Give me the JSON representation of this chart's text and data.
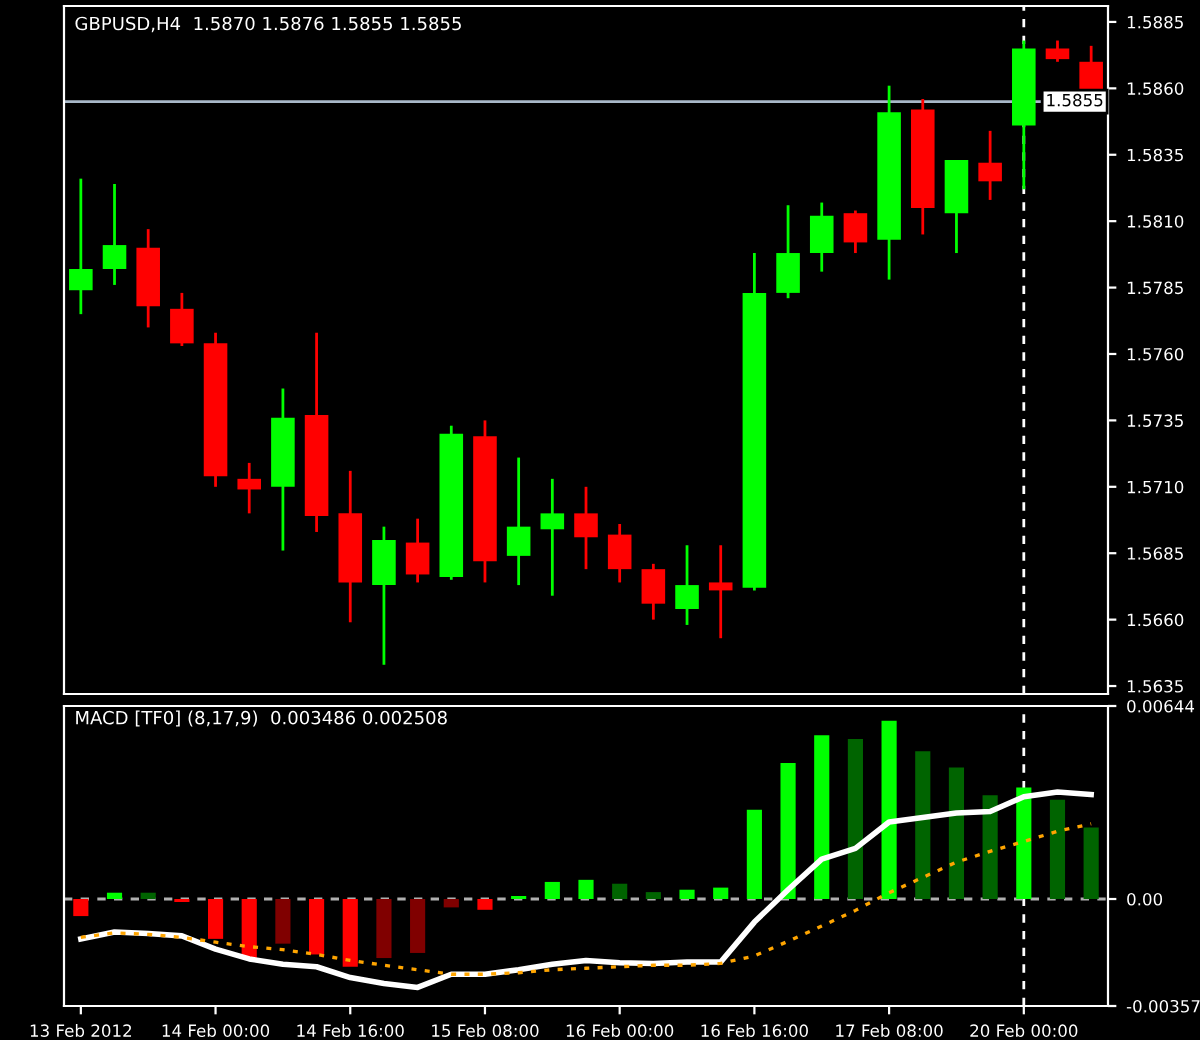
{
  "chart_data": [
    {
      "type": "candlestick",
      "title": "GBPUSD,H4  1.5870 1.5876 1.5855 1.5855",
      "categories": [
        "13 Feb 2012",
        null,
        null,
        null,
        "14 Feb 00:00",
        null,
        null,
        null,
        "14 Feb 16:00",
        null,
        null,
        null,
        "15 Feb 08:00",
        null,
        null,
        null,
        "16 Feb 00:00",
        null,
        null,
        null,
        "16 Feb 16:00",
        null,
        null,
        null,
        "17 Feb 08:00",
        null,
        null,
        null,
        "20 Feb 00:00",
        null,
        null
      ],
      "ohlc": [
        [
          1.5784,
          1.5826,
          1.5775,
          1.5792
        ],
        [
          1.5792,
          1.5824,
          1.5786,
          1.5801
        ],
        [
          1.58,
          1.5807,
          1.577,
          1.5778
        ],
        [
          1.5777,
          1.5783,
          1.5763,
          1.5764
        ],
        [
          1.5764,
          1.5768,
          1.571,
          1.5714
        ],
        [
          1.5713,
          1.5719,
          1.57,
          1.5709
        ],
        [
          1.571,
          1.5747,
          1.5686,
          1.5736
        ],
        [
          1.5737,
          1.5768,
          1.5693,
          1.5699
        ],
        [
          1.57,
          1.5716,
          1.5659,
          1.5674
        ],
        [
          1.5673,
          1.5695,
          1.5643,
          1.569
        ],
        [
          1.5689,
          1.5698,
          1.5674,
          1.5677
        ],
        [
          1.5676,
          1.5733,
          1.5675,
          1.573
        ],
        [
          1.5729,
          1.5735,
          1.5674,
          1.5682
        ],
        [
          1.5684,
          1.5721,
          1.5673,
          1.5695
        ],
        [
          1.5694,
          1.5713,
          1.5669,
          1.57
        ],
        [
          1.57,
          1.571,
          1.5679,
          1.5691
        ],
        [
          1.5692,
          1.5696,
          1.5674,
          1.5679
        ],
        [
          1.5679,
          1.5681,
          1.566,
          1.5666
        ],
        [
          1.5664,
          1.5688,
          1.5658,
          1.5673
        ],
        [
          1.5674,
          1.5688,
          1.5653,
          1.5671
        ],
        [
          1.5672,
          1.5798,
          1.5671,
          1.5783
        ],
        [
          1.5783,
          1.5816,
          1.5781,
          1.5798
        ],
        [
          1.5798,
          1.5817,
          1.5791,
          1.5812
        ],
        [
          1.5813,
          1.5814,
          1.5798,
          1.5802
        ],
        [
          1.5803,
          1.5861,
          1.5788,
          1.5851
        ],
        [
          1.5852,
          1.5856,
          1.5805,
          1.5815
        ],
        [
          1.5813,
          1.5833,
          1.5798,
          1.5833
        ],
        [
          1.5832,
          1.5844,
          1.5818,
          1.5825
        ],
        [
          1.5846,
          1.5878,
          1.5822,
          1.5875
        ],
        [
          1.5875,
          1.5878,
          1.587,
          1.5871
        ],
        [
          1.587,
          1.5876,
          1.5855,
          1.5855
        ]
      ],
      "colors": [
        "#00ff00",
        "#00ff00",
        "#ff0000",
        "#ff0000",
        "#ff0000",
        "#ff0000",
        "#00ff00",
        "#ff0000",
        "#ff0000",
        "#00ff00",
        "#ff0000",
        "#00ff00",
        "#ff0000",
        "#00ff00",
        "#00ff00",
        "#ff0000",
        "#ff0000",
        "#ff0000",
        "#00ff00",
        "#ff0000",
        "#00ff00",
        "#00ff00",
        "#00ff00",
        "#ff0000",
        "#00ff00",
        "#ff0000",
        "#00ff00",
        "#ff0000",
        "#00ff00",
        "#ff0000",
        "#ff0000"
      ],
      "ylim": [
        1.5632,
        1.5891
      ],
      "yticks": [
        1.5885,
        {
          "value": 1.586,
          "label": "1.5860"
        },
        1.5835,
        {
          "value": 1.581,
          "label": "1.5810"
        },
        1.5785,
        {
          "value": 1.576,
          "label": "1.5760"
        },
        1.5735,
        {
          "value": 1.571,
          "label": "1.5710"
        },
        1.5685,
        {
          "value": 1.566,
          "label": "1.5660"
        },
        1.5635
      ],
      "ref_lines": [
        {
          "axis": "y",
          "value": 1.5855,
          "label": "1.5855",
          "color": "#a8b8c8",
          "line_style": "solid"
        },
        {
          "axis": "x",
          "value": "20 Feb 00:00",
          "label": null,
          "color": "#ffffff",
          "line_style": "dashed"
        }
      ],
      "tick_labels": "y"
    },
    {
      "type": "bar",
      "title": "MACD [TF0] (8,17,9)  0.003486 0.002508",
      "categories": [
        "13 Feb 2012",
        null,
        null,
        null,
        "14 Feb 00:00",
        null,
        null,
        null,
        "14 Feb 16:00",
        null,
        null,
        null,
        "15 Feb 08:00",
        null,
        null,
        null,
        "16 Feb 00:00",
        null,
        null,
        null,
        "16 Feb 16:00",
        null,
        null,
        null,
        "17 Feb 08:00",
        null,
        null,
        null,
        "20 Feb 00:00",
        null,
        null
      ],
      "series": [
        {
          "type": "bar",
          "values": [
            -0.00057,
            0.00021,
            0.00021,
            -0.0001,
            -0.00133,
            -0.00197,
            -0.00149,
            -0.00185,
            -0.00226,
            -0.00197,
            -0.0018,
            -0.00028,
            -0.00036,
            0.0001,
            0.00057,
            0.00064,
            0.00051,
            0.00023,
            0.00031,
            0.00038,
            0.00298,
            0.00454,
            0.00546,
            0.00534,
            0.00595,
            0.00493,
            0.00439,
            0.00346,
            0.00372,
            0.00331,
            0.00239
          ],
          "colors": [
            "#ff0000",
            "#00ff00",
            "#006400",
            "#ff0000",
            "#ff0000",
            "#ff0000",
            "#800000",
            "#ff0000",
            "#ff0000",
            "#800000",
            "#800000",
            "#800000",
            "#ff0000",
            "#00ff00",
            "#00ff00",
            "#00ff00",
            "#006400",
            "#006400",
            "#00ff00",
            "#00ff00",
            "#00ff00",
            "#00ff00",
            "#00ff00",
            "#006400",
            "#00ff00",
            "#006400",
            "#006400",
            "#006400",
            "#00ff00",
            "#006400",
            "#006400"
          ]
        },
        {
          "type": "line",
          "color": "#ffffff",
          "line_style": "solid",
          "values": [
            -0.00133,
            -0.0011,
            -0.00115,
            -0.00123,
            -0.00167,
            -0.002,
            -0.00218,
            -0.00226,
            -0.00262,
            -0.00282,
            -0.00295,
            -0.00251,
            -0.00251,
            -0.00236,
            -0.00218,
            -0.00205,
            -0.00213,
            -0.00215,
            -0.0021,
            -0.0021,
            -0.00077,
            0.00031,
            0.00133,
            0.00169,
            0.00257,
            0.00272,
            0.00287,
            0.00292,
            0.00341,
            0.00357,
            0.003486
          ]
        },
        {
          "type": "line",
          "color": "#ffa500",
          "line_style": "dotted",
          "values": [
            -0.00128,
            -0.00113,
            -0.00118,
            -0.00128,
            -0.00144,
            -0.00159,
            -0.00169,
            -0.00185,
            -0.00205,
            -0.00221,
            -0.00236,
            -0.00251,
            -0.00251,
            -0.00246,
            -0.00236,
            -0.00231,
            -0.00226,
            -0.00221,
            -0.00221,
            -0.00215,
            -0.0019,
            -0.00141,
            -0.0009,
            -0.00038,
            0.00021,
            0.00072,
            0.00123,
            0.00159,
            0.00192,
            0.00226,
            0.002508
          ]
        }
      ],
      "ylim": [
        -0.00357,
        0.00644
      ],
      "yticks": [
        0.00644,
        {
          "value": 0,
          "label": "0.00"
        },
        -0.00357
      ],
      "ref_lines": [
        {
          "axis": "y",
          "value": 0,
          "label": null,
          "color": "#b0b0b0",
          "line_style": "dashed"
        },
        {
          "axis": "x",
          "value": "20 Feb 00:00",
          "label": null,
          "color": "#ffffff",
          "line_style": "dashed"
        }
      ]
    }
  ]
}
